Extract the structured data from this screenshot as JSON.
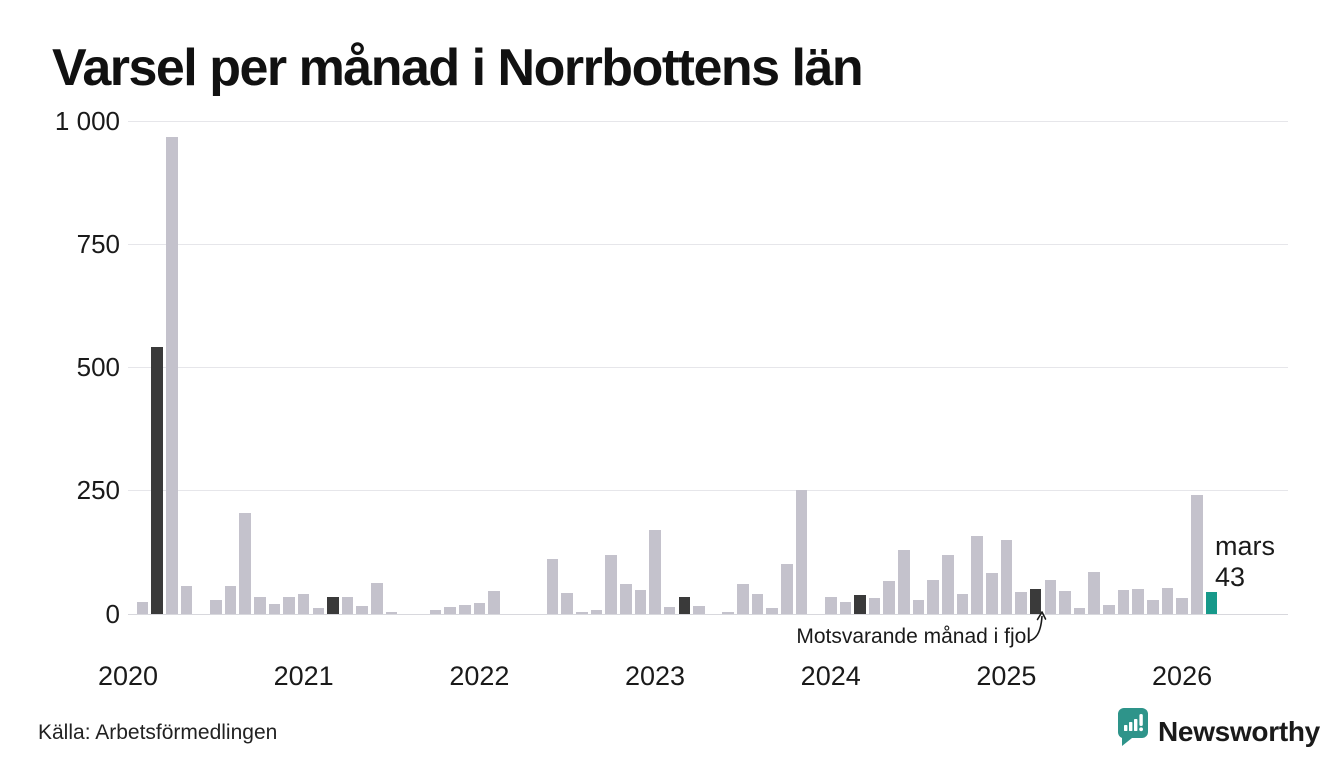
{
  "title": "Varsel per månad i Norrbottens län",
  "source": "Källa: Arbetsförmedlingen",
  "brand": {
    "name": "Newsworthy",
    "color": "#2e948a"
  },
  "annotation": {
    "previous_year_text": "Motsvarande månad i fjol"
  },
  "current_point": {
    "month_label": "mars",
    "value_label": "43"
  },
  "colors": {
    "bar": "#c4c2cc",
    "highlight_bar": "#3a3a3a",
    "current_bar": "#17998a",
    "grid": "#e6e6ea",
    "axis": "#d8d8dd",
    "text": "#1a1a1a"
  },
  "chart_data": {
    "type": "bar",
    "title": "Varsel per månad i Norrbottens län",
    "xlabel": "",
    "ylabel": "",
    "x_start": {
      "year": 2020,
      "month": 1
    },
    "x_end": {
      "year": 2026,
      "month": 3
    },
    "x_tick_labels": [
      "2020",
      "2021",
      "2022",
      "2023",
      "2024",
      "2025",
      "2026"
    ],
    "y_ticks": [
      0,
      250,
      500,
      750,
      1000
    ],
    "y_tick_labels": [
      "0",
      "250",
      "500",
      "750",
      "1 000"
    ],
    "ylim": [
      0,
      1000
    ],
    "grid": "horizontal",
    "legend": "none",
    "values": [
      0,
      24,
      540,
      966,
      56,
      0,
      27,
      55,
      204,
      33,
      19,
      34,
      39,
      11,
      33,
      34,
      16,
      61,
      3,
      0,
      0,
      7,
      13,
      17,
      22,
      46,
      0,
      0,
      0,
      111,
      42,
      4,
      7,
      119,
      59,
      48,
      170,
      14,
      34,
      16,
      0,
      3,
      60,
      40,
      12,
      100,
      250,
      0,
      34,
      24,
      38,
      31,
      66,
      128,
      28,
      68,
      119,
      39,
      157,
      82,
      150,
      44,
      49,
      67,
      45,
      11,
      84,
      18,
      48,
      49,
      27,
      52,
      31,
      240,
      43
    ],
    "highlight_indices": [
      2,
      14,
      26,
      38,
      50,
      62
    ],
    "highlight_meaning": "Motsvarande månad i fjol (mars varje år)",
    "current_index": 74,
    "current_value": 43,
    "current_month": "mars"
  }
}
